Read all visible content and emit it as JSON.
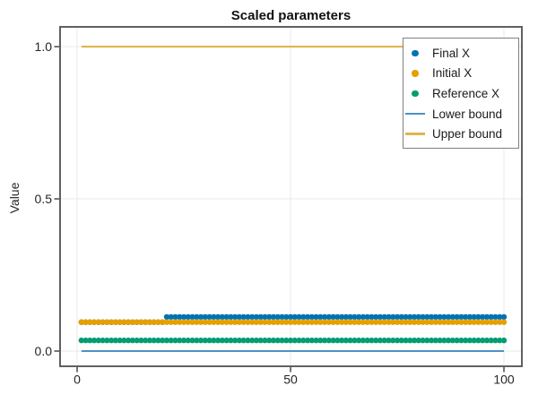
{
  "chart_data": {
    "type": "scatter",
    "title": "Scaled parameters",
    "xlabel": "",
    "ylabel": "Value",
    "xlim": [
      -4,
      104.2
    ],
    "ylim": [
      -0.05,
      1.065
    ],
    "grid": true,
    "x_axis": {
      "ticks": [
        0,
        50,
        100
      ],
      "tick_labels": [
        "0",
        "50",
        "100"
      ]
    },
    "y_axis": {
      "ticks": [
        0,
        0.5,
        1
      ],
      "tick_labels": [
        "0.0",
        "0.5",
        "1.0"
      ]
    },
    "x_points": {
      "from": 1,
      "to": 100,
      "step": 1
    },
    "series": [
      {
        "name": "Final X",
        "type": "scatter",
        "marker": "circle",
        "color": "#0072B2",
        "segments": [
          {
            "from": 1,
            "to": 20,
            "value": 0.095
          },
          {
            "from": 21,
            "to": 100,
            "value": 0.112
          }
        ]
      },
      {
        "name": "Initial X",
        "type": "scatter",
        "marker": "circle",
        "color": "#E69F00",
        "segments": [
          {
            "from": 1,
            "to": 100,
            "value": 0.095
          }
        ]
      },
      {
        "name": "Reference X",
        "type": "scatter",
        "marker": "circle",
        "color": "#009E73",
        "segments": [
          {
            "from": 1,
            "to": 100,
            "value": 0.035
          }
        ]
      },
      {
        "name": "Lower bound",
        "type": "line",
        "color": "#4E92C3",
        "segments": [
          {
            "from": 1,
            "to": 100,
            "value": 0.0
          }
        ]
      },
      {
        "name": "Upper bound",
        "type": "line",
        "color": "#E2B44E",
        "segments": [
          {
            "from": 1,
            "to": 100,
            "value": 1.0
          }
        ]
      }
    ],
    "legend": {
      "position": "upper right",
      "entries": [
        {
          "label": "Final X",
          "marker": "dot",
          "color": "#0072B2"
        },
        {
          "label": "Initial X",
          "marker": "dot",
          "color": "#E69F00"
        },
        {
          "label": "Reference X",
          "marker": "dot",
          "color": "#009E73"
        },
        {
          "label": "Lower bound",
          "marker": "line",
          "color": "#4E92C3"
        },
        {
          "label": "Upper bound",
          "marker": "line",
          "color": "#E2B44E"
        }
      ]
    },
    "style": {
      "spine_color": "#595959",
      "grid_color": "#E9E9E9",
      "tick_color": "#3a3a3a",
      "tick_label_color": "#262626",
      "background": "#FFFFFF",
      "legend_border": "#808080"
    }
  }
}
